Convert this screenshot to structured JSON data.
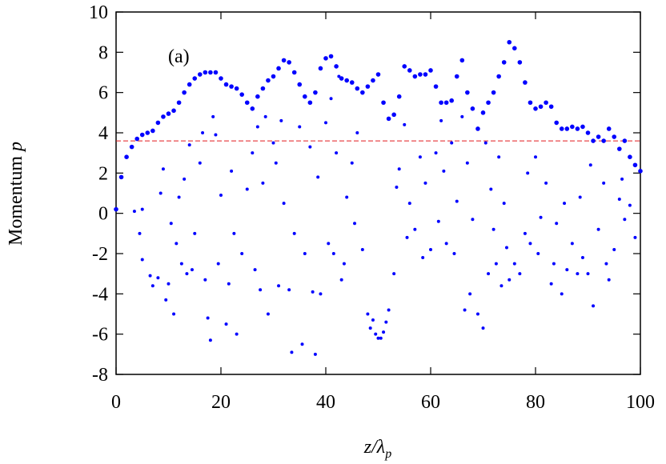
{
  "chart_data": {
    "type": "scatter",
    "xlabel": [
      "z/λ",
      "p"
    ],
    "ylabel": [
      "Momentum ",
      "p"
    ],
    "annotation": "(a)",
    "xlim": [
      0,
      100
    ],
    "ylim": [
      -8,
      10
    ],
    "xticks": [
      0,
      20,
      40,
      60,
      80,
      100
    ],
    "yticks": [
      -8,
      -6,
      -4,
      -2,
      0,
      2,
      4,
      6,
      8,
      10
    ],
    "hline": {
      "value": 3.6,
      "color": "#e41a1c"
    },
    "series": [
      {
        "color": "#0000ff",
        "x": [
          0,
          1,
          2,
          3,
          4,
          5,
          6,
          7,
          8,
          9,
          10,
          11,
          12,
          13,
          14,
          15,
          16,
          17,
          18,
          19,
          20,
          21,
          22,
          23,
          24,
          25,
          26,
          27,
          28,
          29,
          30,
          31,
          32,
          33,
          34,
          35,
          36,
          37,
          38,
          39,
          40,
          41,
          42,
          43,
          44,
          45,
          46,
          47,
          48,
          49,
          50,
          51,
          52,
          53,
          54,
          55,
          56,
          57,
          58,
          59,
          60,
          61,
          62,
          63,
          64,
          65,
          66,
          67,
          68,
          69,
          70,
          71,
          72,
          73,
          74,
          75,
          76,
          77,
          78,
          79,
          80,
          81,
          82,
          83,
          84,
          85,
          86,
          87,
          88,
          89,
          90,
          91,
          92,
          93,
          94,
          95,
          96,
          97,
          98,
          99,
          100
        ],
        "values": [
          0.2,
          1.8,
          2.8,
          3.3,
          3.7,
          3.9,
          4.0,
          4.1,
          4.5,
          4.8,
          4.95,
          5.1,
          5.5,
          6.0,
          6.4,
          6.7,
          6.9,
          7.0,
          7.0,
          7.0,
          6.7,
          6.4,
          6.3,
          6.2,
          5.9,
          5.5,
          5.2,
          5.8,
          6.2,
          6.6,
          6.8,
          7.2,
          7.6,
          7.5,
          7.0,
          6.4,
          5.8,
          5.5,
          6.0,
          7.2,
          7.7,
          7.8,
          7.3,
          6.7,
          6.6,
          6.5,
          6.2,
          6.0,
          6.3,
          6.6,
          6.9,
          5.5,
          4.7,
          4.9,
          5.8,
          7.3,
          7.1,
          6.8,
          6.9,
          6.9,
          7.1,
          6.3,
          5.5,
          5.5,
          5.6,
          6.8,
          7.6,
          6.0,
          5.2,
          4.2,
          5.0,
          5.5,
          6.0,
          6.8,
          7.5,
          8.5,
          8.2,
          7.5,
          6.5,
          5.5,
          5.2,
          5.3,
          5.5,
          5.3,
          4.5,
          4.2,
          4.2,
          4.3,
          4.2,
          4.3,
          4.0,
          3.6,
          3.8,
          3.6,
          4.2,
          3.8,
          3.2,
          3.6,
          2.8,
          2.4,
          2.1
        ]
      },
      {
        "color": "#0000ff",
        "x": [
          3.5,
          4.5,
          5,
          5,
          6.5,
          7,
          8,
          8.5,
          9,
          9.5,
          10,
          10.5,
          11,
          11.5,
          12,
          12.5,
          13,
          13.5,
          14,
          14.5,
          15,
          16,
          16.5,
          17,
          17.5,
          18,
          18.5,
          19,
          19.5,
          20,
          21,
          21.5,
          22,
          22.5,
          23,
          24,
          25,
          26,
          26.5,
          27,
          27.5,
          28,
          28.5,
          29,
          30,
          30.5,
          31,
          31.5,
          32,
          33,
          33.5,
          34,
          35,
          35.5,
          36,
          37,
          37.5,
          38,
          38.5,
          39,
          40,
          40.5,
          41,
          41.5,
          42,
          42.5,
          43,
          43.5,
          44,
          45,
          45.5,
          46,
          47,
          48,
          48.5,
          49,
          49.5,
          50,
          50.5,
          51,
          51.5,
          52,
          53,
          53.5,
          54,
          55,
          55.5,
          56,
          57,
          58,
          58.5,
          59,
          60,
          61,
          61.5,
          62,
          62.5,
          63,
          64,
          64.5,
          65,
          66,
          66.5,
          67,
          67.5,
          68,
          69,
          70,
          70.5,
          71,
          71.5,
          72,
          72.5,
          73,
          73.5,
          74,
          74.5,
          75,
          76,
          77,
          78,
          78.5,
          79,
          80,
          80.5,
          81,
          82,
          83,
          83.5,
          84,
          85,
          85.5,
          86,
          87,
          88,
          88.5,
          89,
          90,
          90.5,
          91,
          92,
          93,
          93.5,
          94,
          95,
          96,
          96.5,
          97,
          98,
          99
        ],
        "values": [
          0.1,
          -1,
          -2.3,
          0.2,
          -3.1,
          -3.6,
          -3.2,
          1,
          2.2,
          -4.3,
          -3.5,
          -0.5,
          -5,
          -1.5,
          0.8,
          -2.5,
          1.7,
          -3,
          3.4,
          -2.8,
          -1,
          2.5,
          4,
          -3.3,
          -5.2,
          -6.3,
          4.8,
          3.9,
          -2.5,
          0.9,
          -5.5,
          -3.5,
          2.1,
          -1,
          -6,
          -2,
          1.2,
          3,
          -2.8,
          4.3,
          -3.8,
          1.5,
          4.8,
          -5,
          3.5,
          2.5,
          -3.6,
          4.6,
          0.5,
          -3.8,
          -6.9,
          -1,
          4.3,
          -6.5,
          -2,
          3.3,
          -3.9,
          -7,
          1.8,
          -4,
          4.5,
          -1.5,
          5.7,
          -2,
          3,
          6.8,
          -3.3,
          -2.5,
          0.8,
          2.5,
          -0.5,
          4,
          -1.8,
          -5,
          -5.7,
          -5.3,
          -6,
          -6.2,
          -6.2,
          -5.9,
          -5.4,
          -4.8,
          -3,
          1.3,
          2.2,
          4.4,
          -1.2,
          0.5,
          -0.8,
          2.8,
          -2.2,
          1.5,
          -1.8,
          3,
          -0.4,
          4.6,
          2.1,
          -1.5,
          3.5,
          -2,
          0.6,
          4.8,
          -4.8,
          2.5,
          -4,
          -0.3,
          -5,
          -5.7,
          3.5,
          -3,
          1.2,
          -0.8,
          -2.5,
          2.8,
          -3.6,
          0.5,
          -1.7,
          -3.3,
          -2.5,
          -3,
          -1,
          2,
          -1.5,
          2.8,
          -2,
          -0.2,
          1.5,
          -3.5,
          -2.5,
          -0.5,
          -4,
          0.5,
          -2.8,
          -1.5,
          -3,
          0.8,
          -2.2,
          -3,
          2.4,
          -4.6,
          -0.8,
          1.5,
          -2.5,
          -3.3,
          -1.8,
          0.7,
          1.7,
          -0.3,
          0.4,
          -1.2
        ]
      }
    ]
  }
}
